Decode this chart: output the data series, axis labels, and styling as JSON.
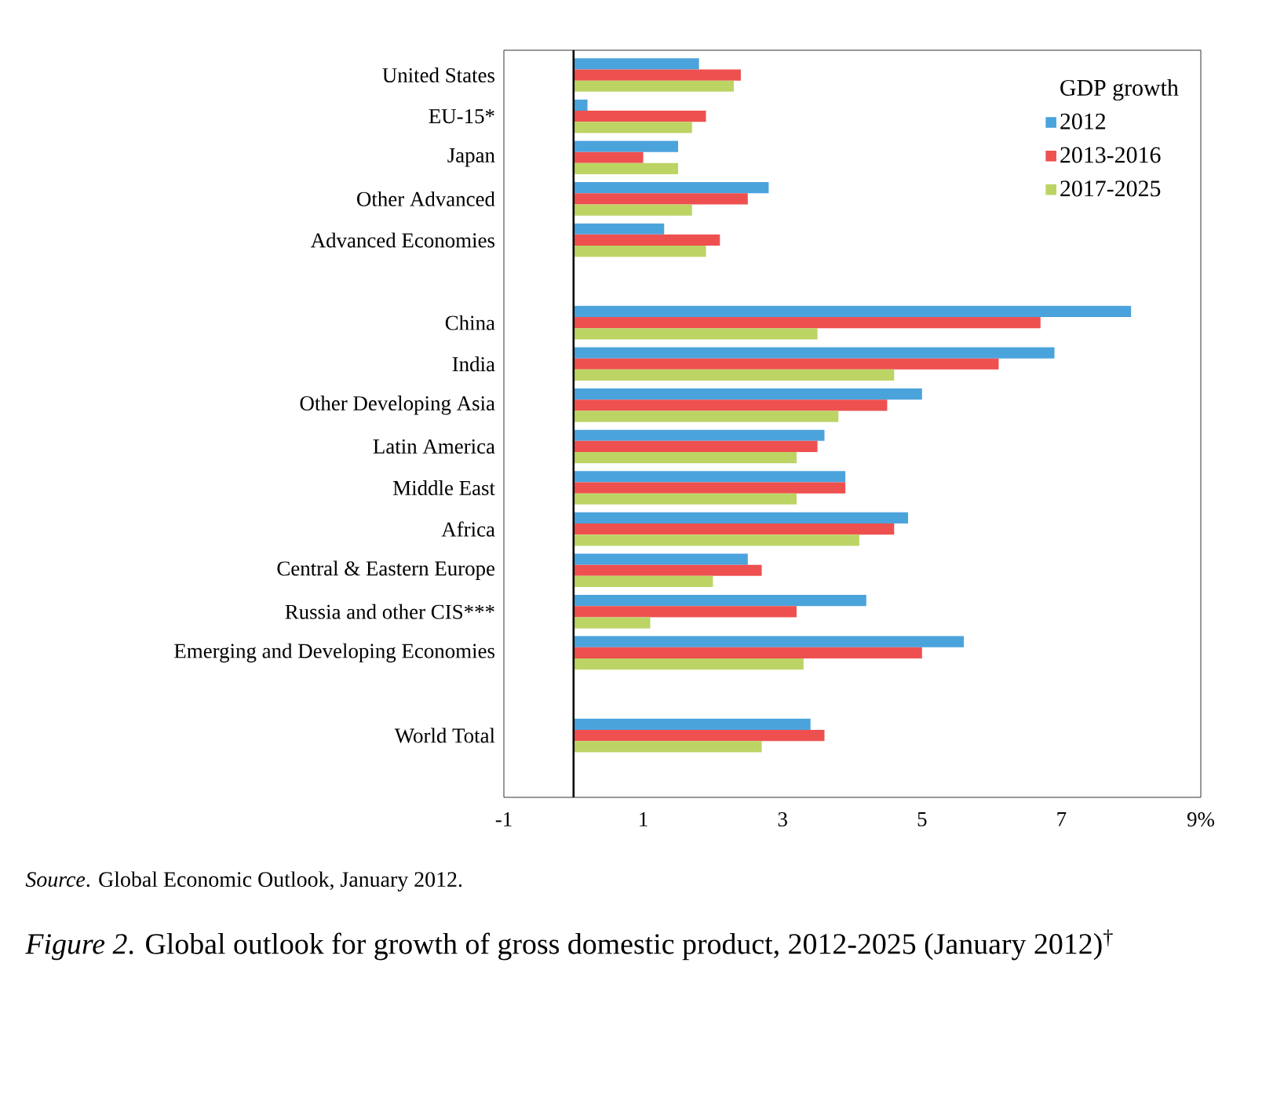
{
  "chart_data": {
    "type": "bar",
    "orientation": "horizontal",
    "legend_title": "GDP growth",
    "legend": "top right",
    "categories": [
      "United States",
      "EU-15*",
      "Japan",
      "Other  Advanced",
      "Advanced Economies",
      null,
      "China",
      "India",
      "Other Developing Asia",
      "Latin America",
      "Middle East",
      "Africa",
      "Central & Eastern Europe",
      "Russia and other CIS***",
      "Emerging and Developing Economies",
      null,
      "World Total"
    ],
    "series": [
      {
        "name": "2012",
        "color": "#4ba3dc",
        "values": [
          1.8,
          0.2,
          1.5,
          2.8,
          1.3,
          null,
          8.0,
          6.9,
          5.0,
          3.6,
          3.9,
          4.8,
          2.5,
          4.2,
          5.6,
          null,
          3.4
        ]
      },
      {
        "name": "2013-2016",
        "color": "#ee5050",
        "values": [
          2.4,
          1.9,
          1.0,
          2.5,
          2.1,
          null,
          6.7,
          6.1,
          4.5,
          3.5,
          3.9,
          4.6,
          2.7,
          3.2,
          5.0,
          null,
          3.6
        ]
      },
      {
        "name": "2017-2025",
        "color": "#bcd464",
        "values": [
          2.3,
          1.7,
          1.5,
          1.7,
          1.9,
          null,
          3.5,
          4.6,
          3.8,
          3.2,
          3.2,
          4.1,
          2.0,
          1.1,
          3.3,
          null,
          2.7
        ]
      }
    ],
    "xlim": [
      -1,
      9
    ],
    "xticks": [
      -1,
      1,
      3,
      5,
      7,
      {
        "value": 9,
        "label": "9%"
      }
    ],
    "grid": false,
    "ref_lines": [
      {
        "axis": "x",
        "value": 0,
        "color": "#000000"
      }
    ],
    "annotations": [
      "*Source*.  Global Economic Outlook, January 2012.",
      "*Figure 2*.  Global outlook for growth of gross domestic product, 2012-2025 (January 2012)$^{†}$"
    ]
  }
}
